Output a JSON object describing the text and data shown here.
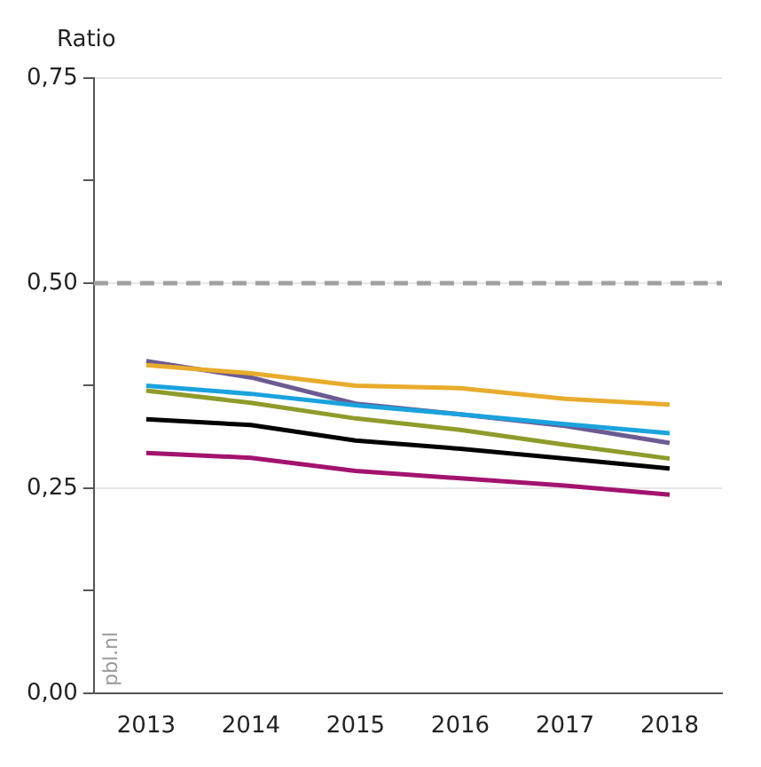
{
  "chart_data": {
    "type": "line",
    "ylabel": "Ratio",
    "categories": [
      "2013",
      "2014",
      "2015",
      "2016",
      "2017",
      "2018"
    ],
    "series": [
      {
        "color": "#e8ac2c",
        "values": [
          0.4,
          0.39,
          0.375,
          0.372,
          0.359,
          0.352
        ]
      },
      {
        "color": "#1aa3dd",
        "values": [
          0.375,
          0.365,
          0.351,
          0.34,
          0.328,
          0.317
        ]
      },
      {
        "color": "#6c5a93",
        "values": [
          0.405,
          0.385,
          0.353,
          0.34,
          0.326,
          0.305
        ]
      },
      {
        "color": "#8f9b2a",
        "values": [
          0.369,
          0.354,
          0.335,
          0.321,
          0.303,
          0.286
        ]
      },
      {
        "color": "#000000",
        "values": [
          0.334,
          0.327,
          0.308,
          0.298,
          0.286,
          0.274
        ]
      },
      {
        "color": "#a2136e",
        "values": [
          0.293,
          0.287,
          0.271,
          0.262,
          0.253,
          0.242
        ]
      }
    ],
    "ylim": [
      0,
      0.75
    ],
    "yticks": [
      {
        "value": 0,
        "label": "0,00"
      },
      {
        "value": 0.125,
        "label": null
      },
      {
        "value": 0.25,
        "label": "0,25"
      },
      {
        "value": 0.375,
        "label": null
      },
      {
        "value": 0.5,
        "label": "0,50"
      },
      {
        "value": 0.625,
        "label": null
      },
      {
        "value": 0.75,
        "label": "0,75"
      }
    ],
    "ref_lines": [
      {
        "axis": "y",
        "value": 0.5,
        "color": "#a0a0a0",
        "line_style": "dashed"
      }
    ],
    "annotations": [
      "pbl.nl"
    ],
    "grid": "y",
    "legend": false,
    "marker": "none",
    "line_style": "solid"
  }
}
